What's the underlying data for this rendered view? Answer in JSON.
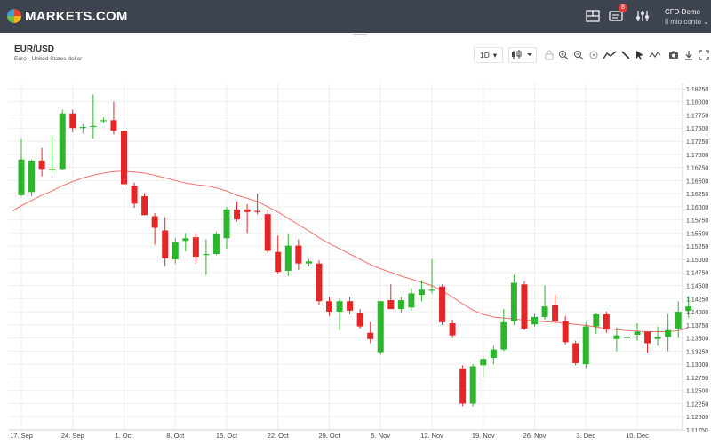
{
  "app": {
    "logo_text": "MARKETS.COM",
    "notification_count": "8",
    "account_type": "CFD Demo",
    "account_menu_label": "Il mio conto ⌄"
  },
  "instrument": {
    "symbol": "EUR/USD",
    "description": "Euro - United States dollar"
  },
  "toolbar": {
    "timeframe": "1D",
    "icons": [
      "chart-type-icon",
      "lock-icon",
      "zoom-in-icon",
      "zoom-out-icon",
      "crosshair-icon",
      "line-chart-icon",
      "draw-line-icon",
      "cursor-icon",
      "indicators-icon",
      "camera-icon",
      "download-icon",
      "fullscreen-icon"
    ]
  },
  "colors": {
    "up": "#2db52d",
    "down": "#e52626",
    "ma": "#f07070",
    "grid": "#eeeeee",
    "topbar": "#3d4450"
  },
  "chart_data": {
    "type": "candlestick",
    "title": "EUR/USD",
    "y_ticks": [
      "1.18250",
      "1.18000",
      "1.17750",
      "1.17500",
      "1.17250",
      "1.17000",
      "1.16750",
      "1.16500",
      "1.16250",
      "1.16000",
      "1.15750",
      "1.15500",
      "1.15250",
      "1.15000",
      "1.14750",
      "1.14500",
      "1.14250",
      "1.14000",
      "1.13750",
      "1.13500",
      "1.13250",
      "1.13000",
      "1.12750",
      "1.12500",
      "1.12250",
      "1.12000",
      "1.11750"
    ],
    "ylim": [
      1.1175,
      1.1835
    ],
    "x_labels": [
      "17. Sep",
      "24. Sep",
      "1. Oct",
      "8. Oct",
      "15. Oct",
      "22. Oct",
      "29. Oct",
      "5. Nov",
      "12. Nov",
      "19. Nov",
      "26. Nov",
      "3. Dec",
      "10. Dec"
    ],
    "x_label_index": [
      0,
      5,
      10,
      15,
      20,
      25,
      30,
      35,
      40,
      45,
      50,
      55,
      60
    ],
    "grid": true,
    "candles": [
      {
        "o": 1.1622,
        "h": 1.1729,
        "l": 1.162,
        "c": 1.169
      },
      {
        "o": 1.1628,
        "h": 1.169,
        "l": 1.162,
        "c": 1.1688
      },
      {
        "o": 1.1688,
        "h": 1.1712,
        "l": 1.1658,
        "c": 1.1672
      },
      {
        "o": 1.167,
        "h": 1.1735,
        "l": 1.1665,
        "c": 1.1672
      },
      {
        "o": 1.1672,
        "h": 1.1785,
        "l": 1.167,
        "c": 1.1778
      },
      {
        "o": 1.1778,
        "h": 1.1785,
        "l": 1.1742,
        "c": 1.175
      },
      {
        "o": 1.175,
        "h": 1.1758,
        "l": 1.174,
        "c": 1.1752
      },
      {
        "o": 1.1752,
        "h": 1.1814,
        "l": 1.173,
        "c": 1.1754
      },
      {
        "o": 1.1765,
        "h": 1.177,
        "l": 1.176,
        "c": 1.1765
      },
      {
        "o": 1.1765,
        "h": 1.18,
        "l": 1.1738,
        "c": 1.1745
      },
      {
        "o": 1.1745,
        "h": 1.1748,
        "l": 1.164,
        "c": 1.1643
      },
      {
        "o": 1.164,
        "h": 1.1646,
        "l": 1.1598,
        "c": 1.1606
      },
      {
        "o": 1.162,
        "h": 1.1626,
        "l": 1.1588,
        "c": 1.1584
      },
      {
        "o": 1.1582,
        "h": 1.1588,
        "l": 1.1528,
        "c": 1.156
      },
      {
        "o": 1.1555,
        "h": 1.158,
        "l": 1.1487,
        "c": 1.1502
      },
      {
        "o": 1.15,
        "h": 1.154,
        "l": 1.1492,
        "c": 1.1533
      },
      {
        "o": 1.1535,
        "h": 1.155,
        "l": 1.1515,
        "c": 1.154
      },
      {
        "o": 1.1542,
        "h": 1.1548,
        "l": 1.1492,
        "c": 1.1505
      },
      {
        "o": 1.1508,
        "h": 1.1538,
        "l": 1.147,
        "c": 1.151
      },
      {
        "o": 1.151,
        "h": 1.1552,
        "l": 1.1508,
        "c": 1.1548
      },
      {
        "o": 1.154,
        "h": 1.16,
        "l": 1.152,
        "c": 1.1595
      },
      {
        "o": 1.1595,
        "h": 1.161,
        "l": 1.1572,
        "c": 1.1576
      },
      {
        "o": 1.1595,
        "h": 1.1605,
        "l": 1.155,
        "c": 1.159
      },
      {
        "o": 1.1592,
        "h": 1.1625,
        "l": 1.1586,
        "c": 1.159
      },
      {
        "o": 1.1586,
        "h": 1.1595,
        "l": 1.1512,
        "c": 1.1516
      },
      {
        "o": 1.1514,
        "h": 1.1545,
        "l": 1.1472,
        "c": 1.1476
      },
      {
        "o": 1.1478,
        "h": 1.1548,
        "l": 1.1468,
        "c": 1.1526
      },
      {
        "o": 1.1526,
        "h": 1.1538,
        "l": 1.148,
        "c": 1.1492
      },
      {
        "o": 1.1492,
        "h": 1.15,
        "l": 1.1486,
        "c": 1.1496
      },
      {
        "o": 1.1492,
        "h": 1.1498,
        "l": 1.1412,
        "c": 1.142
      },
      {
        "o": 1.142,
        "h": 1.1428,
        "l": 1.1392,
        "c": 1.14
      },
      {
        "o": 1.14,
        "h": 1.1425,
        "l": 1.1365,
        "c": 1.142
      },
      {
        "o": 1.142,
        "h": 1.1428,
        "l": 1.1395,
        "c": 1.1402
      },
      {
        "o": 1.1398,
        "h": 1.1405,
        "l": 1.1368,
        "c": 1.1372
      },
      {
        "o": 1.136,
        "h": 1.138,
        "l": 1.134,
        "c": 1.1348
      },
      {
        "o": 1.1323,
        "h": 1.142,
        "l": 1.1318,
        "c": 1.142
      },
      {
        "o": 1.1422,
        "h": 1.1452,
        "l": 1.1405,
        "c": 1.1405
      },
      {
        "o": 1.1405,
        "h": 1.1428,
        "l": 1.1398,
        "c": 1.1422
      },
      {
        "o": 1.1408,
        "h": 1.1445,
        "l": 1.1402,
        "c": 1.1435
      },
      {
        "o": 1.1432,
        "h": 1.146,
        "l": 1.142,
        "c": 1.1442
      },
      {
        "o": 1.1442,
        "h": 1.15,
        "l": 1.1435,
        "c": 1.1442
      },
      {
        "o": 1.1448,
        "h": 1.1452,
        "l": 1.1375,
        "c": 1.138
      },
      {
        "o": 1.1378,
        "h": 1.1385,
        "l": 1.135,
        "c": 1.1355
      },
      {
        "o": 1.1292,
        "h": 1.1298,
        "l": 1.122,
        "c": 1.1225
      },
      {
        "o": 1.1225,
        "h": 1.13,
        "l": 1.122,
        "c": 1.1296
      },
      {
        "o": 1.1298,
        "h": 1.1315,
        "l": 1.1275,
        "c": 1.131
      },
      {
        "o": 1.1312,
        "h": 1.1335,
        "l": 1.13,
        "c": 1.1328
      },
      {
        "o": 1.1328,
        "h": 1.1405,
        "l": 1.1325,
        "c": 1.138
      },
      {
        "o": 1.1382,
        "h": 1.147,
        "l": 1.1375,
        "c": 1.1455
      },
      {
        "o": 1.1452,
        "h": 1.1458,
        "l": 1.1365,
        "c": 1.1368
      },
      {
        "o": 1.1376,
        "h": 1.1396,
        "l": 1.1372,
        "c": 1.139
      },
      {
        "o": 1.139,
        "h": 1.145,
        "l": 1.1385,
        "c": 1.141
      },
      {
        "o": 1.1412,
        "h": 1.1432,
        "l": 1.1378,
        "c": 1.1382
      },
      {
        "o": 1.1382,
        "h": 1.1392,
        "l": 1.1338,
        "c": 1.1342
      },
      {
        "o": 1.134,
        "h": 1.1345,
        "l": 1.1298,
        "c": 1.1302
      },
      {
        "o": 1.13,
        "h": 1.138,
        "l": 1.1292,
        "c": 1.1372
      },
      {
        "o": 1.1372,
        "h": 1.1398,
        "l": 1.1358,
        "c": 1.1395
      },
      {
        "o": 1.1395,
        "h": 1.14,
        "l": 1.136,
        "c": 1.1366
      },
      {
        "o": 1.1348,
        "h": 1.137,
        "l": 1.1325,
        "c": 1.1355
      },
      {
        "o": 1.135,
        "h": 1.1356,
        "l": 1.1345,
        "c": 1.1352
      },
      {
        "o": 1.1356,
        "h": 1.1378,
        "l": 1.1345,
        "c": 1.1362
      },
      {
        "o": 1.1362,
        "h": 1.1362,
        "l": 1.1322,
        "c": 1.134
      },
      {
        "o": 1.1348,
        "h": 1.1372,
        "l": 1.1335,
        "c": 1.1352
      },
      {
        "o": 1.1352,
        "h": 1.1395,
        "l": 1.1325,
        "c": 1.1365
      },
      {
        "o": 1.1368,
        "h": 1.142,
        "l": 1.135,
        "c": 1.14
      },
      {
        "o": 1.1402,
        "h": 1.143,
        "l": 1.1388,
        "c": 1.141
      }
    ],
    "moving_average": [
      1.1602,
      1.1612,
      1.1622,
      1.163,
      1.164,
      1.1648,
      1.1655,
      1.166,
      1.1664,
      1.1667,
      1.1668,
      1.1666,
      1.1664,
      1.166,
      1.1655,
      1.165,
      1.1645,
      1.1642,
      1.164,
      1.1636,
      1.163,
      1.1622,
      1.1616,
      1.161,
      1.16,
      1.159,
      1.1578,
      1.1566,
      1.1554,
      1.1541,
      1.153,
      1.152,
      1.151,
      1.15,
      1.149,
      1.1482,
      1.1475,
      1.1468,
      1.1462,
      1.1456,
      1.145,
      1.144,
      1.1428,
      1.1415,
      1.1403,
      1.1395,
      1.139,
      1.1388,
      1.1386,
      1.1384,
      1.1383,
      1.1381,
      1.138,
      1.1378,
      1.1376,
      1.1374,
      1.1371,
      1.1368,
      1.1366,
      1.1364,
      1.1363,
      1.1362,
      1.1362,
      1.1362,
      1.1364,
      1.137
    ]
  }
}
